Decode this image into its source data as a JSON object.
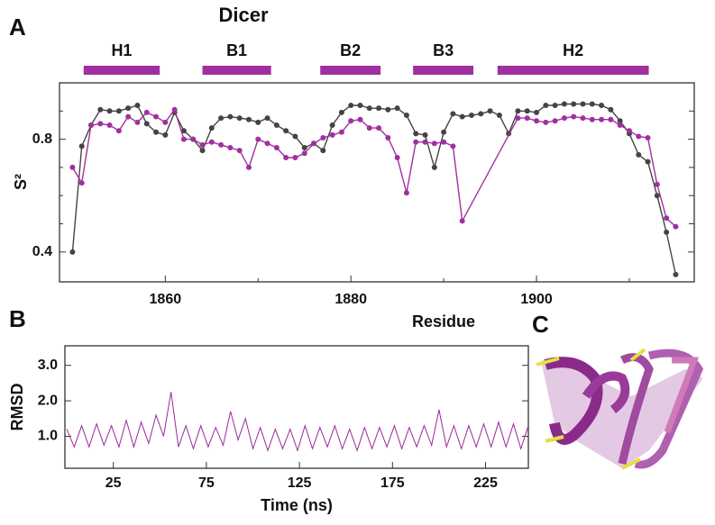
{
  "chart_data": [
    {
      "type": "line",
      "panel_label": "A",
      "title": "Dicer",
      "x_label": "Residue",
      "y_label": "S²",
      "xlim": [
        1848.6,
        1917
      ],
      "xticks": [
        1860,
        1880,
        1900
      ],
      "xminor_ticks": [
        1870,
        1890,
        1910
      ],
      "ylim": [
        0.294,
        1.0
      ],
      "yticks": [
        0.4,
        0.8
      ],
      "yminor_ticks": [
        0.5,
        0.6,
        0.7,
        0.9
      ],
      "secondary_structure": {
        "color": "#a030a0",
        "labels": [
          "H1",
          "B1",
          "B2",
          "B3",
          "H2"
        ],
        "starts": [
          1851.2,
          1864,
          1876.7,
          1886.7,
          1895.8
        ],
        "ends": [
          1859.4,
          1871.4,
          1883.2,
          1893.2,
          1912.1
        ]
      },
      "series": [
        {
          "color": "#444444",
          "x": [
            1850,
            1851,
            1852,
            1853,
            1854,
            1855,
            1856,
            1857,
            1858,
            1859,
            1860,
            1861,
            1862,
            1863,
            1864,
            1865,
            1866,
            1867,
            1868,
            1869,
            1870,
            1871,
            1872,
            1873,
            1874,
            1875,
            1876,
            1877,
            1878,
            1879,
            1880,
            1881,
            1882,
            1883,
            1884,
            1885,
            1886,
            1887,
            1888,
            1889,
            1890,
            1891,
            1892,
            1893,
            1894,
            1895,
            1896,
            1897,
            1898,
            1899,
            1900,
            1901,
            1902,
            1903,
            1904,
            1905,
            1906,
            1907,
            1908,
            1909,
            1910,
            1911,
            1912,
            1913,
            1914,
            1915
          ],
          "values": [
            0.4,
            0.775,
            0.85,
            0.905,
            0.9,
            0.9,
            0.91,
            0.92,
            0.855,
            0.825,
            0.815,
            0.895,
            0.83,
            0.8,
            0.76,
            0.84,
            0.875,
            0.88,
            0.875,
            0.87,
            0.86,
            0.875,
            0.85,
            0.83,
            0.81,
            0.77,
            0.785,
            0.76,
            0.85,
            0.895,
            0.92,
            0.92,
            0.91,
            0.91,
            0.905,
            0.91,
            0.885,
            0.82,
            0.815,
            0.7,
            0.825,
            0.89,
            0.88,
            0.885,
            0.89,
            0.9,
            0.885,
            0.82,
            0.9,
            0.9,
            0.895,
            0.92,
            0.92,
            0.925,
            0.925,
            0.925,
            0.925,
            0.92,
            0.905,
            0.865,
            0.82,
            0.745,
            0.72,
            0.6,
            0.47,
            0.32
          ]
        },
        {
          "color": "#a030a0",
          "x": [
            1850,
            1851,
            1852,
            1853,
            1854,
            1855,
            1856,
            1857,
            1858,
            1859,
            1860,
            1861,
            1862,
            1863,
            1864,
            1865,
            1866,
            1867,
            1868,
            1869,
            1870,
            1871,
            1872,
            1873,
            1874,
            1875,
            1876,
            1877,
            1878,
            1879,
            1880,
            1881,
            1882,
            1883,
            1884,
            1885,
            1886,
            1887,
            1888,
            1889,
            1890,
            1891,
            1892,
            1898,
            1899,
            1900,
            1901,
            1902,
            1903,
            1904,
            1905,
            1906,
            1907,
            1908,
            1909,
            1910,
            1911,
            1912,
            1913,
            1914,
            1915
          ],
          "values": [
            0.7,
            0.645,
            0.85,
            0.855,
            0.85,
            0.83,
            0.88,
            0.86,
            0.895,
            0.88,
            0.86,
            0.905,
            0.8,
            0.8,
            0.78,
            0.79,
            0.78,
            0.77,
            0.76,
            0.7,
            0.8,
            0.785,
            0.77,
            0.735,
            0.735,
            0.75,
            0.785,
            0.805,
            0.815,
            0.825,
            0.865,
            0.87,
            0.84,
            0.84,
            0.805,
            0.735,
            0.61,
            0.79,
            0.79,
            0.785,
            0.79,
            0.775,
            0.51,
            0.875,
            0.875,
            0.865,
            0.86,
            0.865,
            0.875,
            0.88,
            0.875,
            0.87,
            0.87,
            0.87,
            0.85,
            0.83,
            0.81,
            0.805,
            0.64,
            0.52,
            0.49
          ]
        }
      ]
    },
    {
      "type": "line",
      "panel_label": "B",
      "x_label": "Time (ns)",
      "y_label": "RMSD",
      "xlim": [
        -1,
        248
      ],
      "xticks": [
        25,
        75,
        125,
        175,
        225
      ],
      "ylim": [
        0.1,
        3.55
      ],
      "yticks": [
        {
          "value": 1,
          "label": "1.0"
        },
        {
          "value": 2,
          "label": "2.0"
        },
        {
          "value": 3,
          "label": "3.0"
        }
      ],
      "series": [
        {
          "color": "#9a2a9a",
          "x": [
            0,
            4,
            8,
            12,
            16,
            20,
            24,
            28,
            32,
            36,
            40,
            44,
            48,
            52,
            56,
            60,
            64,
            68,
            72,
            76,
            80,
            84,
            88,
            92,
            96,
            100,
            104,
            108,
            112,
            116,
            120,
            124,
            128,
            132,
            136,
            140,
            144,
            148,
            152,
            156,
            160,
            164,
            168,
            172,
            176,
            180,
            184,
            188,
            192,
            196,
            200,
            204,
            208,
            212,
            216,
            220,
            224,
            228,
            232,
            236,
            240,
            244,
            248
          ],
          "values": [
            1.2,
            0.7,
            1.3,
            0.7,
            1.35,
            0.75,
            1.3,
            0.7,
            1.45,
            0.7,
            1.4,
            0.8,
            1.6,
            1.0,
            2.25,
            0.7,
            1.3,
            0.65,
            1.3,
            0.7,
            1.25,
            0.75,
            1.7,
            0.9,
            1.5,
            0.65,
            1.25,
            0.6,
            1.2,
            0.65,
            1.2,
            0.6,
            1.3,
            0.65,
            1.25,
            0.7,
            1.3,
            0.65,
            1.2,
            0.6,
            1.25,
            0.65,
            1.25,
            0.7,
            1.3,
            0.65,
            1.25,
            0.7,
            1.3,
            0.75,
            1.75,
            0.7,
            1.3,
            0.65,
            1.3,
            0.7,
            1.35,
            0.7,
            1.4,
            0.7,
            1.35,
            0.65,
            1.3
          ]
        }
      ]
    }
  ],
  "image_panel": {
    "panel_label": "C"
  }
}
